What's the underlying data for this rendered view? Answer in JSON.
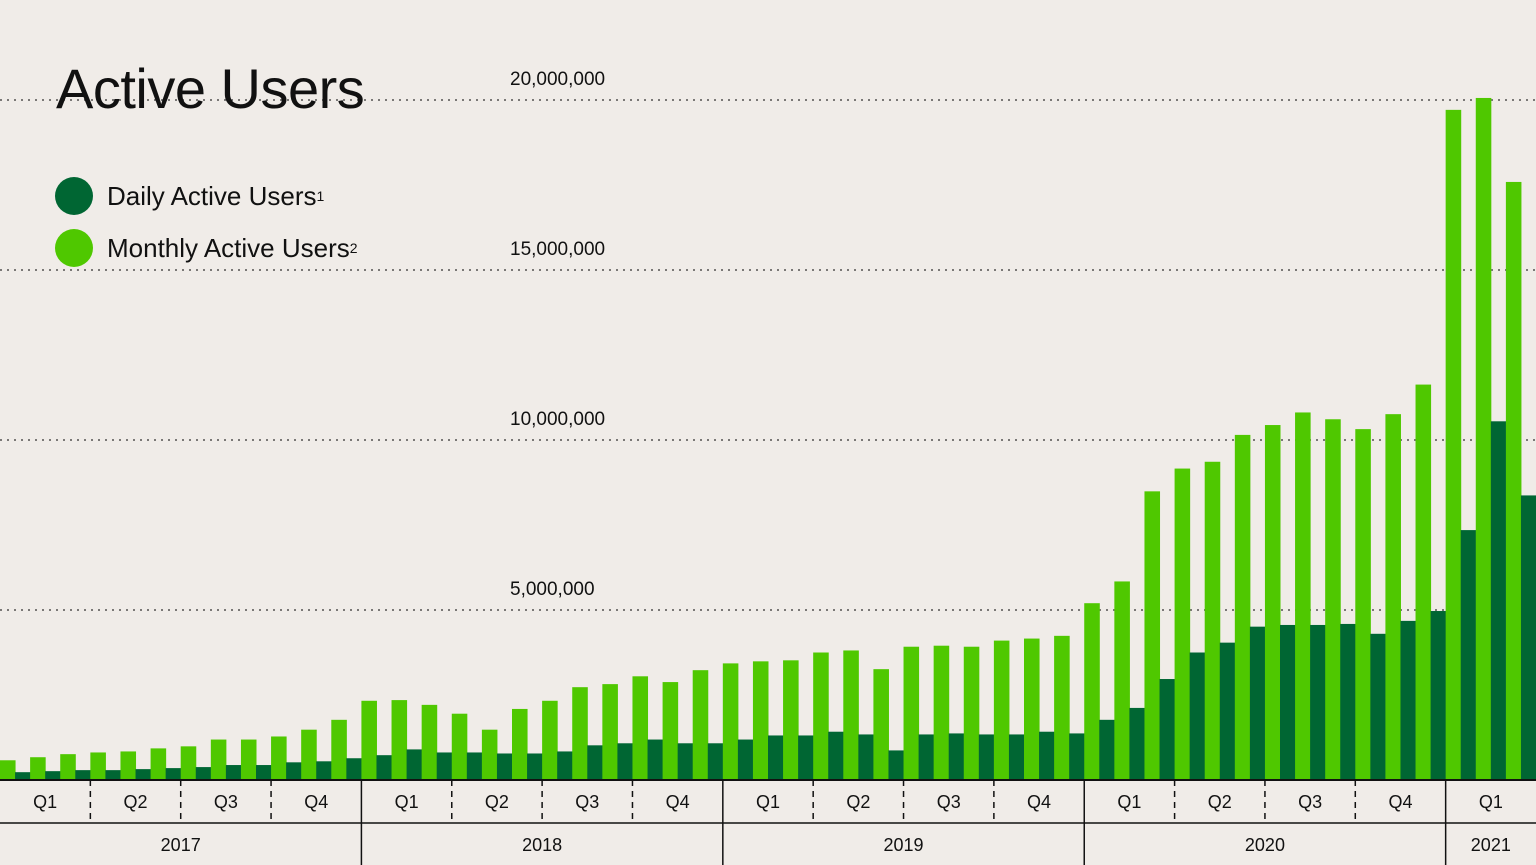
{
  "chart_data": {
    "type": "bar",
    "title": "Active Users",
    "colors": {
      "dau": "#006633",
      "mau": "#4fc800",
      "background": "#f0ece8"
    },
    "grid": "dotted horizontal",
    "ylim": [
      0,
      21000000
    ],
    "yticks": [
      5000000,
      10000000,
      15000000,
      20000000
    ],
    "ytick_labels": [
      "5,000,000",
      "10,000,000",
      "15,000,000",
      "20,000,000"
    ],
    "legend": {
      "placement": "top-left"
    },
    "series": [
      {
        "name": "Daily Active Users",
        "footnote": "1",
        "key": "dau",
        "values": [
          230000,
          260000,
          290000,
          290000,
          320000,
          350000,
          380000,
          440000,
          440000,
          520000,
          550000,
          640000,
          730000,
          900000,
          810000,
          810000,
          780000,
          780000,
          840000,
          1020000,
          1080000,
          1190000,
          1080000,
          1080000,
          1190000,
          1310000,
          1310000,
          1420000,
          1340000,
          870000,
          1340000,
          1370000,
          1340000,
          1340000,
          1420000,
          1370000,
          1770000,
          2120000,
          2970000,
          3750000,
          4040000,
          4510000,
          4560000,
          4560000,
          4590000,
          4300000,
          4680000,
          4970000,
          7350000,
          10550000,
          8370000
        ]
      },
      {
        "name": "Monthly Active Users",
        "footnote": "2",
        "key": "mau",
        "values": [
          580000,
          670000,
          760000,
          810000,
          840000,
          930000,
          990000,
          1190000,
          1190000,
          1280000,
          1480000,
          1770000,
          2330000,
          2350000,
          2210000,
          1950000,
          1480000,
          2090000,
          2330000,
          2730000,
          2820000,
          3050000,
          2880000,
          3230000,
          3430000,
          3490000,
          3520000,
          3750000,
          3810000,
          3260000,
          3920000,
          3950000,
          3920000,
          4100000,
          4160000,
          4240000,
          5200000,
          5840000,
          8490000,
          9160000,
          9360000,
          10150000,
          10440000,
          10810000,
          10610000,
          10320000,
          10760000,
          11630000,
          19710000,
          20060000,
          17590000
        ]
      }
    ],
    "x_axis": {
      "quarters": [
        "Q1",
        "Q2",
        "Q3",
        "Q4",
        "Q1",
        "Q2",
        "Q3",
        "Q4",
        "Q1",
        "Q2",
        "Q3",
        "Q4",
        "Q1",
        "Q2",
        "Q3",
        "Q4",
        "Q1"
      ],
      "years": [
        "2017",
        "2018",
        "2019",
        "2020",
        "2021"
      ]
    }
  }
}
